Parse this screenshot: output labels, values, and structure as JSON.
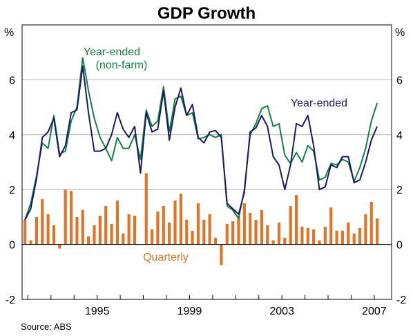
{
  "chart_data": {
    "type": "bar",
    "title": "GDP Growth",
    "unit_left": "%",
    "unit_right": "%",
    "source": "Source: ABS",
    "ylim": [
      -2,
      8
    ],
    "yticks": [
      "-2",
      "0",
      "2",
      "4",
      "6"
    ],
    "ytick_values": [
      -2,
      0,
      2,
      4,
      6
    ],
    "xlim": [
      1991.75,
      2007.75
    ],
    "xticks": [
      "1995",
      "1999",
      "2003",
      "2007"
    ],
    "xtick_values": [
      1995,
      1999,
      2003,
      2007
    ],
    "grid": true,
    "colors": {
      "quarterly": "#e07428",
      "year_ended": "#1a1a5e",
      "year_ended_nonfarm": "#158046",
      "grid": "#b4b4b4",
      "zero_line": "#000000"
    },
    "annotations": {
      "nonfarm_line1": "Year-ended",
      "nonfarm_line2": "(non-farm)",
      "year_ended": "Year-ended",
      "quarterly": "Quarterly"
    },
    "quarter_start": "1991 Q4",
    "series": [
      {
        "name": "Quarterly",
        "type": "bar",
        "values": [
          0.9,
          0.15,
          1.0,
          1.65,
          1.1,
          0.7,
          -0.15,
          2.0,
          1.95,
          1.0,
          1.25,
          0.3,
          0.7,
          1.05,
          1.4,
          0.75,
          1.6,
          0.4,
          1.1,
          1.05,
          0.0,
          2.6,
          0.55,
          1.2,
          1.4,
          0.8,
          1.6,
          1.85,
          0.9,
          0.5,
          1.5,
          0.9,
          1.1,
          0.25,
          -0.75,
          0.75,
          0.85,
          1.05,
          1.5,
          1.15,
          0.9,
          1.25,
          0.7,
          0.15,
          0.8,
          0.25,
          1.4,
          1.8,
          0.65,
          0.6,
          0.55,
          0.15,
          0.65,
          1.35,
          0.5,
          0.5,
          0.8,
          0.4,
          0.6,
          1.1,
          1.55,
          0.95
        ]
      },
      {
        "name": "Year-ended",
        "type": "line",
        "values": [
          0.9,
          1.3,
          2.4,
          3.9,
          4.1,
          4.6,
          3.2,
          3.6,
          4.8,
          4.9,
          6.5,
          4.8,
          3.4,
          3.4,
          3.5,
          4.0,
          4.8,
          4.2,
          3.9,
          4.3,
          2.6,
          4.8,
          4.1,
          4.2,
          5.6,
          3.8,
          5.0,
          5.7,
          4.7,
          5.1,
          3.9,
          3.7,
          4.1,
          4.15,
          3.9,
          1.5,
          1.3,
          1.1,
          1.9,
          4.1,
          4.25,
          4.7,
          4.3,
          3.2,
          2.9,
          2.0,
          2.9,
          4.4,
          4.3,
          4.7,
          3.6,
          2.0,
          2.1,
          2.9,
          2.8,
          3.2,
          3.2,
          2.25,
          2.35,
          3.0,
          3.8,
          4.3
        ]
      },
      {
        "name": "Year-ended (non-farm)",
        "type": "line",
        "values": [
          0.9,
          1.5,
          2.5,
          3.7,
          3.5,
          4.7,
          3.3,
          3.4,
          4.5,
          5.0,
          6.8,
          5.6,
          4.6,
          3.9,
          3.5,
          3.05,
          3.9,
          3.5,
          3.5,
          4.0,
          3.1,
          4.9,
          4.3,
          4.5,
          5.75,
          4.1,
          5.3,
          5.4,
          4.7,
          4.8,
          3.85,
          3.9,
          4.0,
          3.9,
          4.0,
          1.4,
          1.25,
          0.95,
          2.0,
          4.0,
          4.4,
          4.95,
          5.05,
          4.3,
          4.4,
          3.25,
          2.95,
          3.35,
          3.0,
          3.6,
          3.4,
          2.35,
          2.45,
          2.95,
          2.9,
          3.1,
          3.0,
          2.3,
          2.8,
          3.5,
          4.5,
          5.15
        ]
      }
    ]
  }
}
